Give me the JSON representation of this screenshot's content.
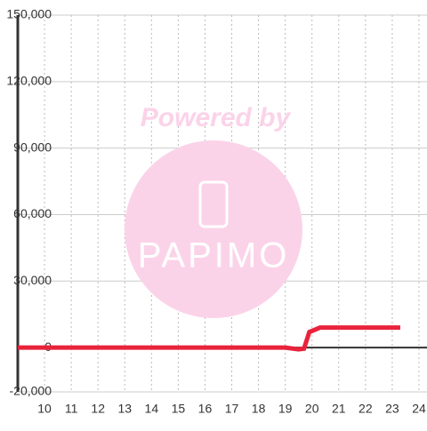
{
  "chart_data": {
    "type": "line",
    "watermark": {
      "top": "Powered by",
      "brand": "PAPIMO"
    },
    "x": [
      9,
      19,
      19.5,
      19.7,
      19.9,
      20.3,
      23.3
    ],
    "series": [
      {
        "color": "#e8233b",
        "values": [
          0,
          0,
          -800,
          -500,
          7000,
          9000,
          9000
        ]
      }
    ],
    "xlim": [
      9,
      24.3
    ],
    "xticks": [
      10,
      11,
      12,
      13,
      14,
      15,
      16,
      17,
      18,
      19,
      20,
      21,
      22,
      23,
      24
    ],
    "ylim": [
      -20000,
      150000
    ],
    "yticks": [
      {
        "value": -20000,
        "label": "-20,000"
      },
      0,
      {
        "value": 30000,
        "label": "30,000"
      },
      {
        "value": 60000,
        "label": "60,000"
      },
      {
        "value": 90000,
        "label": "90,000"
      },
      {
        "value": 120000,
        "label": "120,000"
      },
      {
        "value": 150000,
        "label": "150,000"
      }
    ],
    "grid": true
  }
}
